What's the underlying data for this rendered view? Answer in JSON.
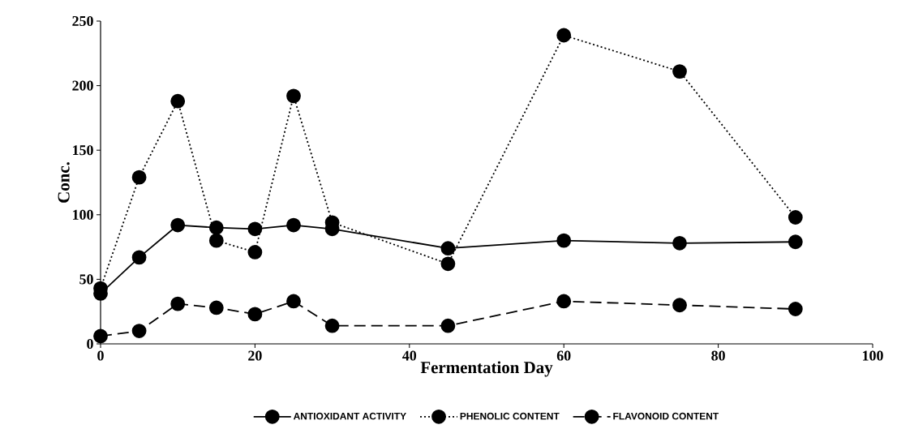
{
  "chart_data": {
    "type": "line",
    "xlabel": "Fermentation Day",
    "ylabel": "Conc.",
    "x": [
      0,
      5,
      10,
      15,
      20,
      25,
      30,
      45,
      60,
      75,
      90
    ],
    "series": [
      {
        "name": "ANTIOXIDANT ACTIVITY",
        "color": "#000000",
        "line_style": "solid",
        "values": [
          39,
          67,
          92,
          90,
          89,
          92,
          89,
          74,
          80,
          78,
          79
        ]
      },
      {
        "name": "PHENOLIC CONTENT",
        "color": "#000000",
        "line_style": "dotted",
        "values": [
          43,
          129,
          188,
          80,
          71,
          192,
          94,
          62,
          239,
          211,
          98
        ]
      },
      {
        "name": "FLAVONOID CONTENT",
        "color": "#000000",
        "line_style": "dashed",
        "values": [
          6,
          10,
          31,
          28,
          23,
          33,
          14,
          14,
          33,
          30,
          27
        ]
      }
    ],
    "xlim": [
      0,
      100
    ],
    "xticks": [
      0,
      20,
      40,
      60,
      80,
      100
    ],
    "ylim": [
      0,
      250
    ],
    "yticks": [
      0,
      50,
      100,
      150,
      200,
      250
    ],
    "grid": false,
    "legend": "bottom",
    "marker": "circle"
  }
}
